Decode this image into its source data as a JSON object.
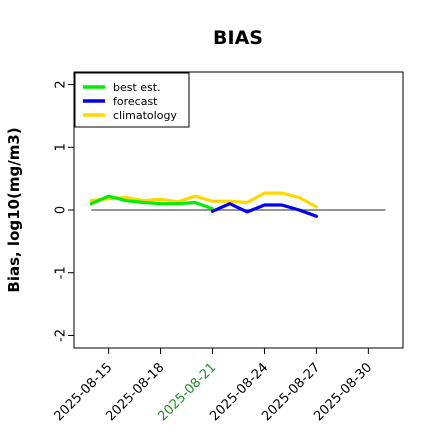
{
  "chart_data": {
    "type": "line",
    "title": "BIAS",
    "ylabel": "Bias, log10(mg/m3)",
    "xlabel": "",
    "ylim": [
      -2.2,
      2.2
    ],
    "yticks": [
      "-2",
      "-1",
      "0",
      "1",
      "2"
    ],
    "xlim": [
      "2025-08-13",
      "2025-09-01"
    ],
    "xticks": [
      {
        "label": "2025-08-15",
        "date": "2025-08-15",
        "color": "#000000"
      },
      {
        "label": "2025-08-18",
        "date": "2025-08-18",
        "color": "#000000"
      },
      {
        "label": "2025-08-21",
        "date": "2025-08-21",
        "color": "#228b22"
      },
      {
        "label": "2025-08-24",
        "date": "2025-08-24",
        "color": "#000000"
      },
      {
        "label": "2025-08-27",
        "date": "2025-08-27",
        "color": "#000000"
      },
      {
        "label": "2025-08-30",
        "date": "2025-08-30",
        "color": "#000000"
      }
    ],
    "reference_line": {
      "y": 0,
      "from": "2025-08-14",
      "to": "2025-08-31",
      "color": "#555555"
    },
    "legend": {
      "placement": "top-left",
      "entries": [
        "best est.",
        "forecast",
        "climatology"
      ]
    },
    "grid": false,
    "series": [
      {
        "name": "best est.",
        "color": "#00ee00",
        "x": [
          "2025-08-14",
          "2025-08-15",
          "2025-08-16",
          "2025-08-17",
          "2025-08-18",
          "2025-08-19",
          "2025-08-20",
          "2025-08-21"
        ],
        "y": [
          0.1,
          0.22,
          0.15,
          0.12,
          0.1,
          0.1,
          0.12,
          0.02
        ]
      },
      {
        "name": "forecast",
        "color": "#0000ee",
        "x": [
          "2025-08-21",
          "2025-08-22",
          "2025-08-23",
          "2025-08-24",
          "2025-08-25",
          "2025-08-26",
          "2025-08-27"
        ],
        "y": [
          -0.02,
          0.1,
          -0.03,
          0.08,
          0.08,
          0.0,
          -0.1
        ]
      },
      {
        "name": "climatology",
        "color": "#ffd700",
        "x": [
          "2025-08-14",
          "2025-08-15",
          "2025-08-16",
          "2025-08-17",
          "2025-08-18",
          "2025-08-19",
          "2025-08-20",
          "2025-08-21",
          "2025-08-22",
          "2025-08-23",
          "2025-08-24",
          "2025-08-25",
          "2025-08-26",
          "2025-08-27"
        ],
        "y": [
          0.15,
          0.18,
          0.2,
          0.15,
          0.17,
          0.13,
          0.22,
          0.14,
          0.14,
          0.12,
          0.27,
          0.27,
          0.2,
          0.05
        ]
      }
    ]
  }
}
